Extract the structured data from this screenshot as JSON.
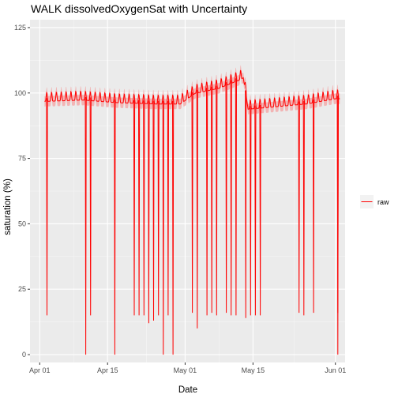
{
  "chart_data": {
    "type": "line",
    "title": "WALK dissolvedOxygenSat with Uncertainty",
    "xlabel": "Date",
    "ylabel": "saturation (%)",
    "x_ticks": [
      "Apr 01",
      "Apr 15",
      "May 01",
      "May 15",
      "Jun 01"
    ],
    "x_tick_dates": [
      "2024-04-01",
      "2024-04-15",
      "2024-05-01",
      "2024-05-15",
      "2024-06-01"
    ],
    "y_ticks": [
      0,
      25,
      50,
      75,
      100,
      125
    ],
    "xlim": [
      "2024-03-30",
      "2024-06-03"
    ],
    "ylim": [
      -3,
      128
    ],
    "grid": true,
    "legend_position": "right",
    "series": [
      {
        "name": "raw",
        "color": "#ff0000",
        "band_color": "#f4a6a6",
        "baseline": [
          [
            "2024-04-02",
            98
          ],
          [
            "2024-04-10",
            98.5
          ],
          [
            "2024-04-17",
            97.5
          ],
          [
            "2024-04-25",
            97
          ],
          [
            "2024-04-30",
            97
          ],
          [
            "2024-05-03",
            101
          ],
          [
            "2024-05-08",
            103
          ],
          [
            "2024-05-12",
            106
          ],
          [
            "2024-05-13",
            107
          ],
          [
            "2024-05-14",
            95
          ],
          [
            "2024-05-20",
            96
          ],
          [
            "2024-05-26",
            97
          ],
          [
            "2024-06-01",
            99
          ]
        ],
        "dips": [
          [
            "2024-04-02",
            15
          ],
          [
            "2024-04-10",
            0
          ],
          [
            "2024-04-11",
            15
          ],
          [
            "2024-04-16",
            0
          ],
          [
            "2024-04-20",
            15
          ],
          [
            "2024-04-21",
            15
          ],
          [
            "2024-04-22",
            15
          ],
          [
            "2024-04-23",
            12
          ],
          [
            "2024-04-24",
            13
          ],
          [
            "2024-04-25",
            15
          ],
          [
            "2024-04-26",
            0
          ],
          [
            "2024-04-27",
            15
          ],
          [
            "2024-04-28",
            0
          ],
          [
            "2024-05-02",
            16
          ],
          [
            "2024-05-03",
            10
          ],
          [
            "2024-05-05",
            15
          ],
          [
            "2024-05-06",
            16
          ],
          [
            "2024-05-07",
            15
          ],
          [
            "2024-05-09",
            16
          ],
          [
            "2024-05-10",
            15
          ],
          [
            "2024-05-11",
            15
          ],
          [
            "2024-05-13",
            14
          ],
          [
            "2024-05-14",
            15
          ],
          [
            "2024-05-15",
            15
          ],
          [
            "2024-05-16",
            15
          ],
          [
            "2024-05-24",
            16
          ],
          [
            "2024-05-25",
            15
          ],
          [
            "2024-05-27",
            16
          ],
          [
            "2024-06-01",
            0
          ],
          [
            "2024-06-01",
            16
          ]
        ]
      }
    ]
  }
}
